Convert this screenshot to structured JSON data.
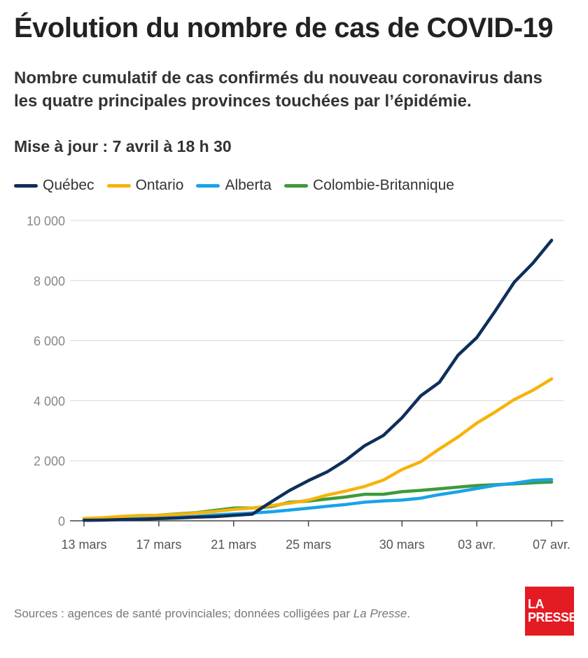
{
  "title": "Évolution du nombre de cas de COVID-19",
  "subtitle": "Nombre cumulatif de cas confirmés du nouveau coronavirus dans les quatre principales provinces touchées par l’épidémie.",
  "update": "Mise à jour : 7 avril à 18 h 30",
  "source": {
    "prefix": "Sources : agences de santé provinciales; données colligées par ",
    "emphasis": "La Presse",
    "suffix": "."
  },
  "logo": {
    "line1": "LA",
    "line2": "PRESSE"
  },
  "colors": {
    "quebec": "#0e2f5a",
    "ontario": "#f7b30a",
    "alberta": "#1aa3e8",
    "colombie": "#3e9a3c",
    "grid": "#d8d8d8",
    "logo": "#e31b23"
  },
  "chart_data": {
    "type": "line",
    "x": [
      "13 mars",
      "14 mars",
      "15 mars",
      "16 mars",
      "17 mars",
      "18 mars",
      "19 mars",
      "20 mars",
      "21 mars",
      "22 mars",
      "23 mars",
      "24 mars",
      "25 mars",
      "26 mars",
      "27 mars",
      "28 mars",
      "29 mars",
      "30 mars",
      "31 mars",
      "01 avr.",
      "02 avr.",
      "03 avr.",
      "04 avr.",
      "05 avr.",
      "06 avr.",
      "07 avr."
    ],
    "x_ticks": [
      {
        "x": "13 mars",
        "label": "13 mars"
      },
      {
        "x": "17 mars",
        "label": "17 mars"
      },
      {
        "x": "21 mars",
        "label": "21 mars"
      },
      {
        "x": "25 mars",
        "label": "25 mars"
      },
      {
        "x": "30 mars",
        "label": "30 mars"
      },
      {
        "x": "03 avr.",
        "label": "03 avr."
      },
      {
        "x": "07 avr.",
        "label": "07 avr."
      }
    ],
    "y_ticks": [
      0,
      2000,
      4000,
      6000,
      8000,
      10000
    ],
    "y_tick_labels": [
      "0",
      "2 000",
      "4 000",
      "6 000",
      "8 000",
      "10 000"
    ],
    "ylim": [
      0,
      10000
    ],
    "grid": true,
    "legend_position": "top-left",
    "series": [
      {
        "name": "Québec",
        "color_key": "quebec",
        "values": [
          17,
          24,
          39,
          50,
          74,
          94,
          121,
          139,
          181,
          221,
          628,
          1013,
          1339,
          1629,
          2021,
          2498,
          2840,
          3430,
          4162,
          4611,
          5518,
          6101,
          6997,
          7944,
          8580,
          9340
        ]
      },
      {
        "name": "Ontario",
        "color_key": "ontario",
        "values": [
          79,
          103,
          145,
          177,
          185,
          214,
          258,
          311,
          377,
          425,
          503,
          588,
          688,
          858,
          993,
          1144,
          1355,
          1706,
          1966,
          2392,
          2793,
          3255,
          3630,
          4038,
          4347,
          4726
        ]
      },
      {
        "name": "Alberta",
        "color_key": "alberta",
        "values": [
          23,
          39,
          56,
          74,
          97,
          119,
          146,
          195,
          226,
          259,
          301,
          358,
          419,
          486,
          542,
          621,
          661,
          690,
          754,
          871,
          968,
          1075,
          1181,
          1250,
          1348,
          1373
        ]
      },
      {
        "name": "Colombie-Britannique",
        "color_key": "colombie",
        "values": [
          64,
          73,
          103,
          103,
          186,
          231,
          271,
          348,
          424,
          424,
          472,
          617,
          659,
          725,
          792,
          884,
          884,
          970,
          1013,
          1066,
          1121,
          1174,
          1203,
          1229,
          1266,
          1291
        ]
      }
    ]
  }
}
